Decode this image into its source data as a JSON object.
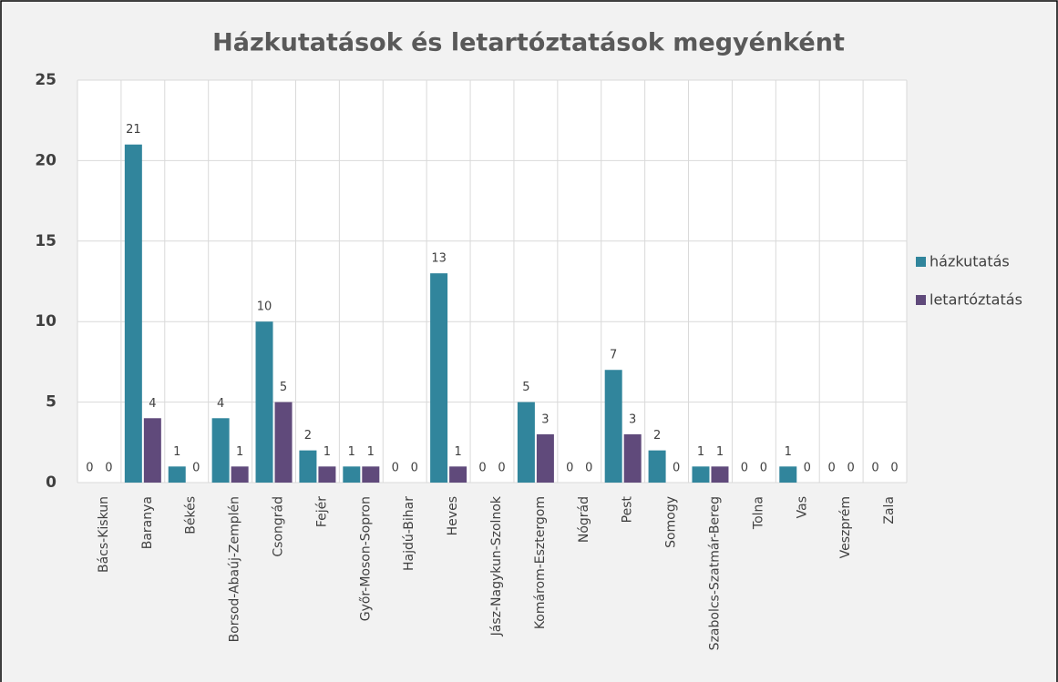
{
  "chart_data": {
    "type": "bar",
    "title": "Házkutatások és letartóztatások megyénként",
    "categories": [
      "Bács-Kiskun",
      "Baranya",
      "Békés",
      "Borsod-Abaúj-Zemplén",
      "Csongrád",
      "Fejér",
      "Győr-Moson-Sopron",
      "Hajdú-Bihar",
      "Heves",
      "Jász-Nagykun-Szolnok",
      "Komárom-Esztergom",
      "Nógrád",
      "Pest",
      "Somogy",
      "Szabolcs-Szatmár-Bereg",
      "Tolna",
      "Vas",
      "Veszprém",
      "Zala"
    ],
    "series": [
      {
        "name": "házkutatás",
        "color": "#31859c",
        "values": [
          0,
          21,
          1,
          4,
          10,
          2,
          1,
          0,
          13,
          0,
          5,
          0,
          7,
          2,
          1,
          0,
          1,
          0,
          0
        ]
      },
      {
        "name": "letartóztatás",
        "color": "#604a7b",
        "values": [
          0,
          4,
          0,
          1,
          5,
          1,
          1,
          0,
          1,
          0,
          3,
          0,
          3,
          0,
          1,
          0,
          0,
          0,
          0
        ]
      }
    ],
    "ylim": [
      0,
      25
    ],
    "yticks": [
      0,
      5,
      10,
      15,
      20,
      25
    ],
    "grid": true,
    "legend": "right"
  }
}
